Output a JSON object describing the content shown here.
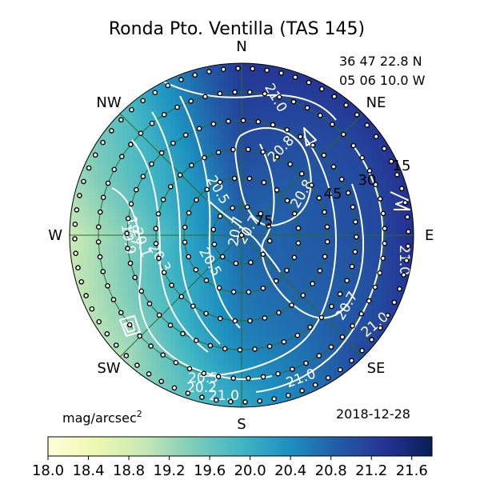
{
  "chart_data": {
    "type": "heatmap",
    "projection": "polar-allsky",
    "title": "Ronda Pto. Ventilla (TAS 145)",
    "location": {
      "lat": "36 47 22.8 N",
      "lon": "05 06 10.0 W"
    },
    "date": "2018-12-28",
    "unit_label": "mag/arcsec",
    "unit_power": "2",
    "directions": [
      "N",
      "NE",
      "E",
      "SE",
      "S",
      "SW",
      "W",
      "NW"
    ],
    "altitude_rings": [
      "15",
      "30",
      "45",
      "75"
    ],
    "colorbar": {
      "min": 18.0,
      "max": 21.8,
      "ticks": [
        "18.0",
        "18.4",
        "18.8",
        "19.2",
        "19.6",
        "20.0",
        "20.4",
        "20.8",
        "21.2",
        "21.6"
      ],
      "colors": [
        "#ffffd9",
        "#edf8b1",
        "#c7e9b4",
        "#7fcdbb",
        "#41b6c4",
        "#1d91c0",
        "#225ea8",
        "#253494",
        "#081d58"
      ]
    },
    "zenith_mag": 20.8,
    "sample_field": [
      {
        "az": 0,
        "values": [
          21.3,
          21.2,
          21.1,
          21.0,
          20.9,
          20.8
        ]
      },
      {
        "az": 45,
        "values": [
          21.3,
          21.1,
          21.0,
          20.9,
          20.8,
          20.8
        ]
      },
      {
        "az": 90,
        "values": [
          21.4,
          21.1,
          21.0,
          20.9,
          20.8,
          20.8
        ]
      },
      {
        "az": 135,
        "values": [
          21.1,
          20.9,
          20.8,
          20.8,
          20.8,
          20.8
        ]
      },
      {
        "az": 180,
        "values": [
          20.1,
          20.3,
          20.5,
          20.6,
          20.7,
          20.8
        ]
      },
      {
        "az": 225,
        "values": [
          19.1,
          19.4,
          19.8,
          20.1,
          20.4,
          20.8
        ]
      },
      {
        "az": 270,
        "values": [
          18.9,
          19.2,
          19.5,
          19.9,
          20.4,
          20.8
        ]
      },
      {
        "az": 315,
        "values": [
          19.7,
          19.9,
          20.1,
          20.3,
          20.5,
          20.8
        ]
      }
    ],
    "contour_labels": [
      "21.0",
      "20.8",
      "20.8",
      "20.5",
      "20.7",
      "20.3",
      "20.1",
      "19.9",
      "19.7",
      "20.5",
      "20.5",
      "20.2",
      "21.0",
      "21.0",
      "20.7",
      "21.0",
      "20.7",
      "21.0"
    ]
  }
}
